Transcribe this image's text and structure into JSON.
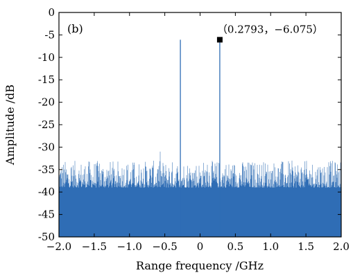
{
  "chart_data": {
    "type": "line",
    "panel_label": "(b)",
    "xlabel": "Range frequency /GHz",
    "ylabel": "Amplitude /dB",
    "xlim": [
      -2.0,
      2.0
    ],
    "ylim": [
      -50,
      0
    ],
    "xticks": [
      "−2.0",
      "−1.5",
      "−1.0",
      "−0.5",
      "0",
      "0.5",
      "1.0",
      "1.5",
      "2.0"
    ],
    "xtick_values": [
      -2.0,
      -1.5,
      -1.0,
      -0.5,
      0,
      0.5,
      1.0,
      1.5,
      2.0
    ],
    "yticks": [
      "0",
      "-5",
      "-10",
      "-15",
      "-20",
      "-25",
      "-30",
      "-35",
      "-40",
      "-45",
      "-50"
    ],
    "ytick_values": [
      0,
      -5,
      -10,
      -15,
      -20,
      -25,
      -30,
      -35,
      -40,
      -45,
      -50
    ],
    "grid": false,
    "series_color": "#2f6db5",
    "noise_floor_db": [
      -45,
      -33
    ],
    "peaks": [
      {
        "x": -0.2793,
        "y": -6.075
      },
      {
        "x": 0.2793,
        "y": -6.075
      }
    ],
    "marker": {
      "x": 0.2793,
      "y": -6.075,
      "label": "（0.2793，−6.075）"
    }
  }
}
